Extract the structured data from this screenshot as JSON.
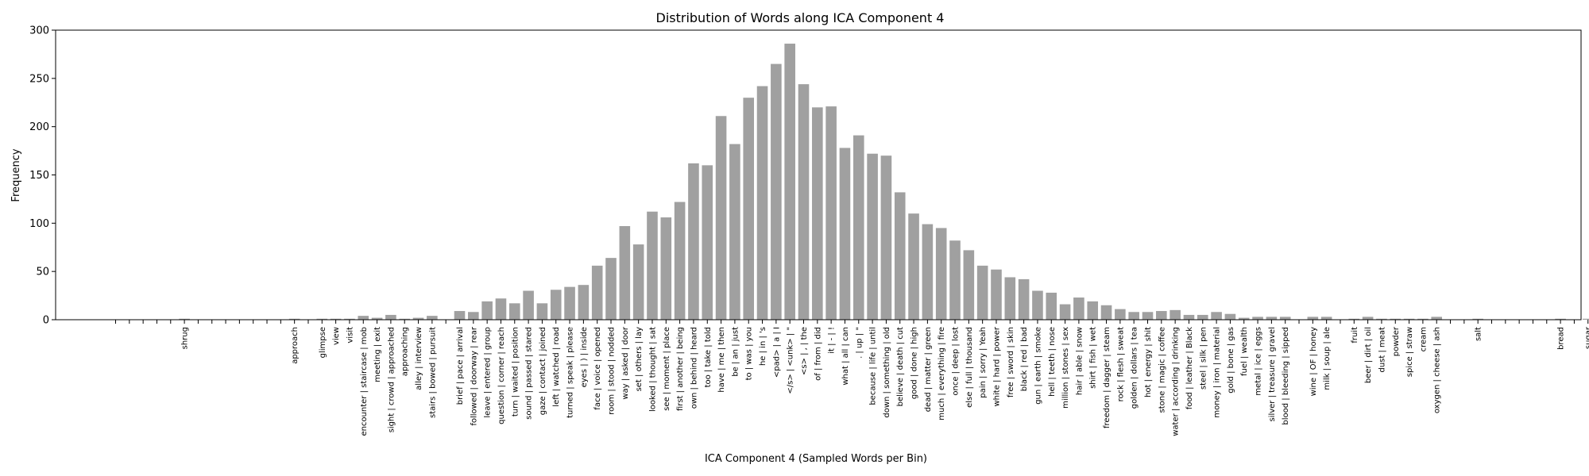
{
  "chart_data": {
    "type": "bar",
    "title": "Distribution of Words along ICA Component 4",
    "xlabel": "ICA Component 4 (Sampled Words per Bin)",
    "ylabel": "Frequency",
    "ylim": [
      0,
      300
    ],
    "yticks": [
      0,
      50,
      100,
      150,
      200,
      250,
      300
    ],
    "grid": false,
    "bar_color": "#a0a0a0",
    "categories": [
      "",
      "",
      "",
      "",
      "",
      "shrug",
      "",
      "",
      "",
      "",
      "",
      "",
      "",
      "approach",
      "",
      "glimpse",
      "view",
      "visit",
      "encounter | staircase | mob",
      "meeting | exit",
      "sight | crowd | approached",
      "approaching",
      "alley | interview",
      "stairs | bowed | pursuit",
      "",
      "brief | pace | arrival",
      "followed | doorway | rear",
      "leave | entered | group",
      "question | corner | reach",
      "turn | waited | position",
      "sound | passed | stared",
      "gaze | contact | joined",
      "left | watched | road",
      "turned | speak | please",
      "eyes | ) | inside",
      "face | voice | opened",
      "room | stood | nodded",
      "way | asked | door",
      "set | others | lay",
      "looked | thought | sat",
      "see | moment | place",
      "first | another | being",
      "own | behind | heard",
      "too | take | told",
      "have | me | then",
      "be | an | just",
      "to | was | you",
      "he | in | 's",
      "<pad> | a | I",
      "</s> | <unk> | \"",
      "<s> | , | the",
      "of | from | did",
      "it | - | !",
      "what | all | can",
      ". | up | \"",
      "because | life | until",
      "down | something | old",
      "believe | death | cut",
      "good | done | high",
      "dead | matter | green",
      "much | everything | fire",
      "once | deep | lost",
      "else | full | thousand",
      "pain | sorry | Yeah",
      "white | hard | power",
      "free | sword | skin",
      "black | red | bad",
      "gun | earth | smoke",
      "hell | teeth | nose",
      "million | stones | sex",
      "hair | able | snow",
      "shirt | fish | wet",
      "freedom | dagger | steam",
      "rock | flesh | sweat",
      "golden | dollars | tea",
      "hot | energy | shit",
      "stone | magic | coffee",
      "water | according | drinking",
      "food | leather | Black",
      "steel | silk | pen",
      "money | iron | material",
      "gold | bone | gas",
      "fuel | wealth",
      "metal | ice | eggs",
      "silver | treasure | gravel",
      "blood | bleeding | sipped",
      "",
      "wine | OF | honey",
      "milk | soup | ale",
      "",
      "fruit",
      "beer | dirt | oil",
      "dust | meat",
      "powder",
      "spice | straw",
      "cream",
      "oxygen | cheese | ash",
      "",
      "",
      "salt",
      "",
      "",
      "",
      "",
      "",
      "bread",
      "",
      "sugar",
      "",
      ""
    ],
    "values": [
      0,
      0,
      0,
      0,
      0,
      1,
      0,
      0,
      0,
      0,
      0,
      0,
      0,
      1,
      0,
      1,
      1,
      1,
      4,
      2,
      5,
      1,
      2,
      4,
      0,
      9,
      8,
      19,
      22,
      17,
      30,
      17,
      31,
      34,
      36,
      56,
      64,
      97,
      78,
      112,
      106,
      122,
      162,
      160,
      211,
      182,
      230,
      242,
      265,
      286,
      244,
      220,
      221,
      178,
      191,
      172,
      170,
      132,
      110,
      99,
      95,
      82,
      72,
      56,
      52,
      44,
      42,
      30,
      28,
      16,
      23,
      19,
      15,
      11,
      8,
      8,
      9,
      10,
      5,
      5,
      8,
      6,
      2,
      3,
      3,
      3,
      0,
      3,
      3,
      0,
      1,
      3,
      1,
      1,
      1,
      1,
      3,
      0,
      0,
      1,
      0,
      0,
      0,
      0,
      0,
      1,
      0,
      1,
      0,
      0
    ]
  }
}
